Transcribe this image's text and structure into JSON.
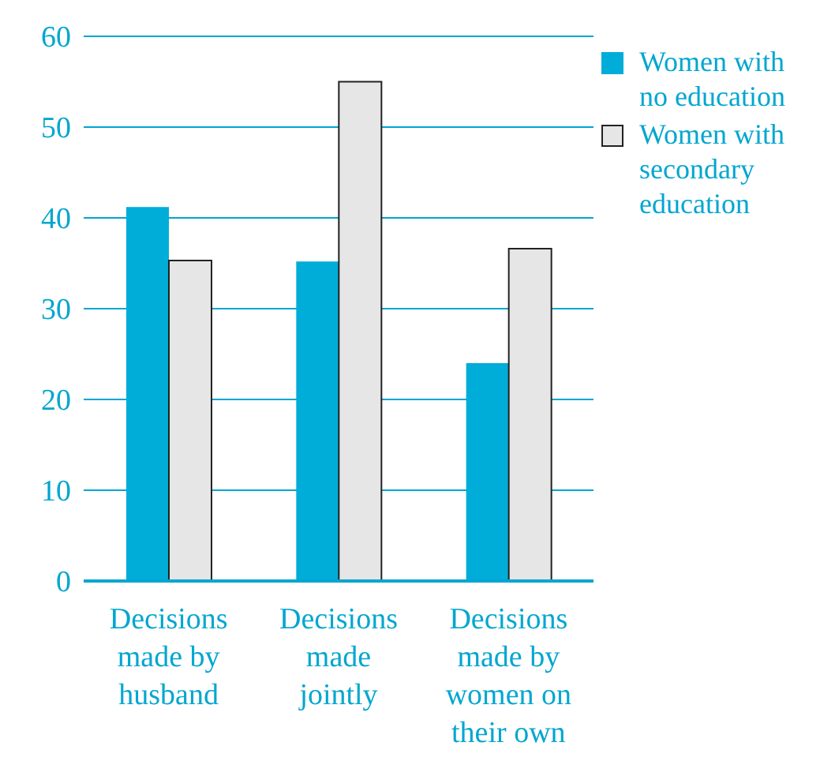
{
  "chart_data": {
    "type": "bar",
    "categories": [
      "Decisions made by husband",
      "Decisions made jointly",
      "Decisions made by women on their own"
    ],
    "series": [
      {
        "name": "Women with no education",
        "color": "#00acd8",
        "values": [
          41.2,
          35.2,
          24
        ]
      },
      {
        "name": "Women with secondary education",
        "color": "#e6e6e6",
        "values": [
          35.3,
          55,
          36.6
        ]
      }
    ],
    "ylim": [
      0,
      60
    ],
    "yticks": [
      0,
      10,
      20,
      30,
      40,
      50,
      60
    ],
    "grid": "y",
    "legend": "top right"
  }
}
